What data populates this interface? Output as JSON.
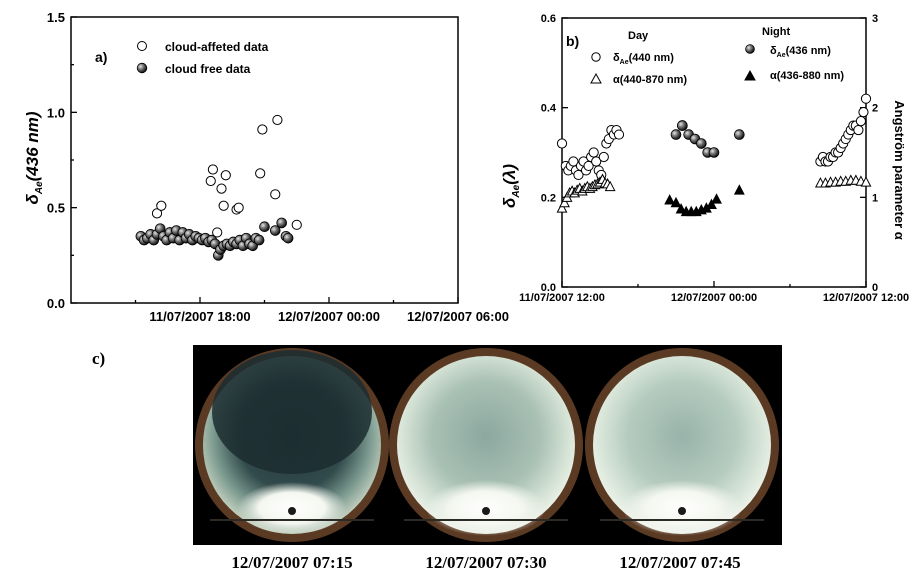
{
  "chart_data": [
    {
      "type": "scatter",
      "panel_label": "a)",
      "ylabel": "δAe(436 nm)",
      "ylabel_main": "δ",
      "ylabel_sub": "Ae",
      "ylabel_paren": "(436 nm)",
      "xlim_hours": [
        -6,
        12
      ],
      "ylim": [
        0.0,
        1.5
      ],
      "yticks": [
        "0.0",
        "0.5",
        "1.0",
        "1.5"
      ],
      "xtick_labels": [
        "11/07/2007 18:00",
        "12/07/2007 00:00",
        "12/07/2007 06:00"
      ],
      "legend": [
        "cloud-affeted data",
        "cloud free data"
      ],
      "legend_position": "top-left",
      "series": [
        {
          "name": "cloud-affeted data",
          "marker": "open-circle",
          "points": [
            [
              -2.0,
              0.47
            ],
            [
              -1.8,
              0.51
            ],
            [
              0.5,
              0.64
            ],
            [
              0.6,
              0.7
            ],
            [
              0.8,
              0.37
            ],
            [
              1.0,
              0.6
            ],
            [
              1.1,
              0.51
            ],
            [
              1.2,
              0.67
            ],
            [
              1.7,
              0.49
            ],
            [
              1.8,
              0.5
            ],
            [
              2.8,
              0.68
            ],
            [
              2.9,
              0.91
            ],
            [
              3.5,
              0.57
            ],
            [
              3.6,
              0.96
            ],
            [
              4.5,
              0.41
            ]
          ]
        },
        {
          "name": "cloud free data",
          "marker": "filled-sphere",
          "points": [
            [
              -2.75,
              0.35
            ],
            [
              -2.6,
              0.33
            ],
            [
              -2.45,
              0.34
            ],
            [
              -2.3,
              0.36
            ],
            [
              -2.15,
              0.33
            ],
            [
              -2.0,
              0.36
            ],
            [
              -1.85,
              0.39
            ],
            [
              -1.7,
              0.35
            ],
            [
              -1.55,
              0.33
            ],
            [
              -1.4,
              0.37
            ],
            [
              -1.25,
              0.34
            ],
            [
              -1.1,
              0.38
            ],
            [
              -0.95,
              0.33
            ],
            [
              -0.8,
              0.37
            ],
            [
              -0.65,
              0.34
            ],
            [
              -0.5,
              0.36
            ],
            [
              -0.35,
              0.33
            ],
            [
              -0.2,
              0.35
            ],
            [
              -0.05,
              0.34
            ],
            [
              0.1,
              0.33
            ],
            [
              0.25,
              0.34
            ],
            [
              0.4,
              0.32
            ],
            [
              0.55,
              0.33
            ],
            [
              0.7,
              0.31
            ],
            [
              0.85,
              0.25
            ],
            [
              0.95,
              0.28
            ],
            [
              1.1,
              0.3
            ],
            [
              1.25,
              0.31
            ],
            [
              1.4,
              0.3
            ],
            [
              1.55,
              0.32
            ],
            [
              1.7,
              0.31
            ],
            [
              1.85,
              0.33
            ],
            [
              2.0,
              0.3
            ],
            [
              2.15,
              0.34
            ],
            [
              2.3,
              0.31
            ],
            [
              2.45,
              0.3
            ],
            [
              2.6,
              0.34
            ],
            [
              2.75,
              0.33
            ],
            [
              3.0,
              0.4
            ],
            [
              3.5,
              0.38
            ],
            [
              3.8,
              0.42
            ],
            [
              4.0,
              0.35
            ],
            [
              4.1,
              0.34
            ]
          ]
        }
      ]
    },
    {
      "type": "scatter",
      "panel_label": "b)",
      "ylabel": "δAe(λ)",
      "ylabel_main": "δ",
      "ylabel_sub": "Ae",
      "ylabel_paren": "(λ)",
      "y2label": "Angström parameter α",
      "xlim_hours": [
        -12,
        12
      ],
      "ylim": [
        0.0,
        0.6
      ],
      "y2lim": [
        0,
        3
      ],
      "yticks": [
        "0.0",
        "0.2",
        "0.4",
        "0.6"
      ],
      "y2ticks": [
        "0",
        "1",
        "2",
        "3"
      ],
      "xtick_labels": [
        "11/07/2007 12:00",
        "12/07/2007 00:00",
        "12/07/2007 12:00"
      ],
      "legend_groups": [
        {
          "title": "Day",
          "entries": [
            {
              "sym": "δ",
              "sub": "Ae",
              "rest": "(440 nm)"
            },
            {
              "sym": "α",
              "sub": "",
              "rest": "(440-870 nm)"
            }
          ]
        },
        {
          "title": "Night",
          "entries": [
            {
              "sym": "δ",
              "sub": "Ae",
              "rest": "(436 nm)"
            },
            {
              "sym": "α",
              "sub": "",
              "rest": "(436-880 nm)"
            }
          ]
        }
      ],
      "series": [
        {
          "name": "δAe(440 nm)",
          "axis": "left",
          "marker": "open-circle",
          "points": [
            [
              -12.0,
              0.32
            ],
            [
              -11.7,
              0.27
            ],
            [
              -11.5,
              0.26
            ],
            [
              -11.3,
              0.27
            ],
            [
              -11.1,
              0.28
            ],
            [
              -10.9,
              0.26
            ],
            [
              -10.7,
              0.25
            ],
            [
              -10.5,
              0.27
            ],
            [
              -10.3,
              0.28
            ],
            [
              -10.1,
              0.26
            ],
            [
              -9.9,
              0.27
            ],
            [
              -9.7,
              0.29
            ],
            [
              -9.5,
              0.3
            ],
            [
              -9.3,
              0.28
            ],
            [
              -9.1,
              0.26
            ],
            [
              -8.9,
              0.25
            ],
            [
              -8.7,
              0.29
            ],
            [
              -8.5,
              0.32
            ],
            [
              -8.3,
              0.33
            ],
            [
              -8.1,
              0.35
            ],
            [
              -7.9,
              0.34
            ],
            [
              -7.7,
              0.35
            ],
            [
              -7.5,
              0.34
            ],
            [
              8.4,
              0.28
            ],
            [
              8.6,
              0.29
            ],
            [
              8.8,
              0.28
            ],
            [
              9.0,
              0.28
            ],
            [
              9.2,
              0.29
            ],
            [
              9.4,
              0.29
            ],
            [
              9.6,
              0.3
            ],
            [
              9.8,
              0.3
            ],
            [
              10.0,
              0.31
            ],
            [
              10.2,
              0.32
            ],
            [
              10.4,
              0.33
            ],
            [
              10.6,
              0.34
            ],
            [
              10.8,
              0.35
            ],
            [
              11.0,
              0.36
            ],
            [
              11.2,
              0.36
            ],
            [
              11.4,
              0.35
            ],
            [
              11.6,
              0.37
            ],
            [
              11.8,
              0.39
            ],
            [
              12.0,
              0.42
            ]
          ]
        },
        {
          "name": "α(440-870 nm)",
          "axis": "right",
          "marker": "open-triangle",
          "points": [
            [
              -12.0,
              0.88
            ],
            [
              -11.8,
              0.94
            ],
            [
              -11.6,
              1.0
            ],
            [
              -11.4,
              1.05
            ],
            [
              -11.2,
              1.07
            ],
            [
              -11.0,
              1.05
            ],
            [
              -10.8,
              1.08
            ],
            [
              -10.6,
              1.1
            ],
            [
              -10.4,
              1.07
            ],
            [
              -10.2,
              1.1
            ],
            [
              -10.0,
              1.12
            ],
            [
              -9.8,
              1.1
            ],
            [
              -9.6,
              1.12
            ],
            [
              -9.4,
              1.14
            ],
            [
              -9.2,
              1.15
            ],
            [
              -9.0,
              1.17
            ],
            [
              -8.8,
              1.2
            ],
            [
              -8.6,
              1.16
            ],
            [
              -8.4,
              1.15
            ],
            [
              -8.2,
              1.12
            ],
            [
              8.4,
              1.16
            ],
            [
              8.8,
              1.16
            ],
            [
              9.2,
              1.17
            ],
            [
              9.6,
              1.17
            ],
            [
              10.0,
              1.18
            ],
            [
              10.4,
              1.18
            ],
            [
              10.8,
              1.19
            ],
            [
              11.2,
              1.19
            ],
            [
              11.6,
              1.18
            ],
            [
              12.0,
              1.17
            ]
          ]
        },
        {
          "name": "δAe(436 nm)",
          "axis": "left",
          "marker": "filled-sphere",
          "points": [
            [
              -3.0,
              0.34
            ],
            [
              -2.5,
              0.36
            ],
            [
              -2.0,
              0.34
            ],
            [
              -1.5,
              0.33
            ],
            [
              -1.0,
              0.32
            ],
            [
              -0.5,
              0.3
            ],
            [
              0.0,
              0.3
            ],
            [
              -2.5,
              0.36
            ],
            [
              2.0,
              0.34
            ]
          ]
        },
        {
          "name": "α(436-880 nm)",
          "axis": "right",
          "marker": "filled-triangle",
          "points": [
            [
              -3.5,
              0.97
            ],
            [
              -3.0,
              0.94
            ],
            [
              -2.6,
              0.87
            ],
            [
              -2.2,
              0.84
            ],
            [
              -1.8,
              0.84
            ],
            [
              -1.4,
              0.84
            ],
            [
              -1.0,
              0.86
            ],
            [
              -0.6,
              0.88
            ],
            [
              -0.2,
              0.92
            ],
            [
              0.2,
              0.98
            ],
            [
              2.0,
              1.08
            ]
          ]
        }
      ]
    }
  ],
  "photos": {
    "panel_label": "c)",
    "items": [
      {
        "caption": "12/07/2007 07:15"
      },
      {
        "caption": "12/07/2007 07:30"
      },
      {
        "caption": "12/07/2007 07:45"
      }
    ]
  }
}
